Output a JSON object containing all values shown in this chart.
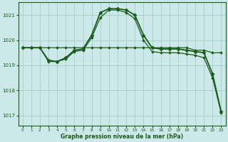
{
  "xlabel": "Graphe pression niveau de la mer (hPa)",
  "background_color": "#cce8e8",
  "grid_color": "#aad0d0",
  "line_color": "#1a5c1a",
  "ylim": [
    1016.6,
    1021.5
  ],
  "yticks": [
    1017,
    1018,
    1019,
    1020,
    1021
  ],
  "xlim": [
    -0.5,
    23.5
  ],
  "xticks": [
    0,
    1,
    2,
    3,
    4,
    5,
    6,
    7,
    8,
    9,
    10,
    11,
    12,
    13,
    14,
    15,
    16,
    17,
    18,
    19,
    20,
    21,
    22,
    23
  ],
  "series": [
    {
      "x": [
        0,
        1,
        2,
        3,
        4,
        5,
        6,
        7,
        8,
        9,
        10,
        11,
        12,
        13,
        14,
        15,
        16,
        17,
        18,
        19,
        20,
        21,
        22,
        23
      ],
      "y": [
        1019.7,
        1019.7,
        1019.7,
        1019.2,
        1019.15,
        1019.3,
        1019.6,
        1019.65,
        1020.2,
        1021.1,
        1021.25,
        1021.25,
        1021.2,
        1021.0,
        1020.2,
        1019.7,
        1019.65,
        1019.65,
        1019.65,
        1019.6,
        1019.55,
        1019.5,
        1018.65,
        1017.15
      ],
      "marker": "D",
      "markersize": 2.5,
      "linewidth": 1.3
    },
    {
      "x": [
        0,
        1,
        2,
        3,
        4,
        5,
        6,
        7,
        8,
        9,
        10,
        11,
        12,
        13,
        14,
        15,
        16,
        17,
        18,
        19,
        20,
        21,
        22,
        23
      ],
      "y": [
        1019.7,
        1019.7,
        1019.7,
        1019.7,
        1019.7,
        1019.7,
        1019.7,
        1019.7,
        1019.7,
        1019.7,
        1019.7,
        1019.7,
        1019.7,
        1019.7,
        1019.7,
        1019.7,
        1019.7,
        1019.7,
        1019.7,
        1019.7,
        1019.6,
        1019.6,
        1019.5,
        1019.5
      ],
      "marker": "D",
      "markersize": 1.8,
      "linewidth": 0.9
    },
    {
      "x": [
        2,
        3,
        4,
        5,
        6,
        7,
        8,
        9,
        10,
        11,
        12,
        13,
        14,
        15,
        16,
        17,
        18,
        19,
        20,
        21,
        22,
        23
      ],
      "y": [
        1019.7,
        1019.15,
        1019.15,
        1019.25,
        1019.55,
        1019.6,
        1020.1,
        1020.9,
        1021.2,
        1021.2,
        1021.1,
        1020.85,
        1020.0,
        1019.55,
        1019.5,
        1019.5,
        1019.5,
        1019.45,
        1019.4,
        1019.3,
        1018.5,
        1017.1
      ],
      "marker": "D",
      "markersize": 1.8,
      "linewidth": 0.9
    }
  ]
}
